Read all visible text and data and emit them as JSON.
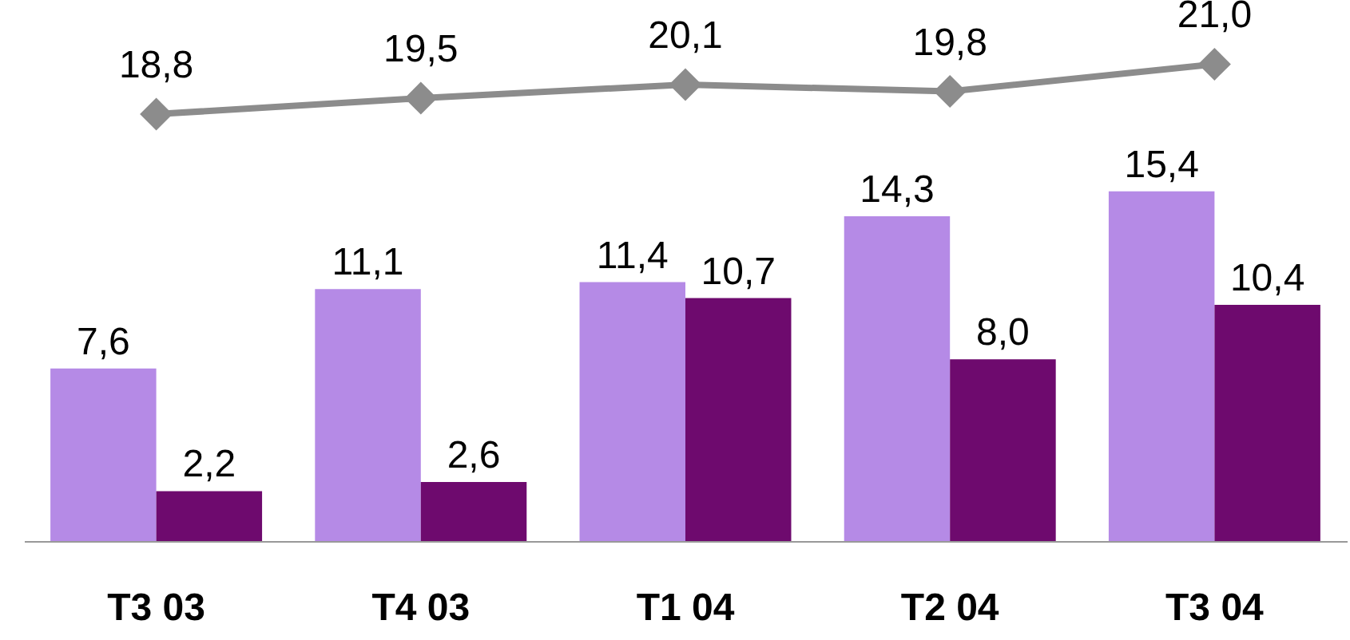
{
  "chart_data": {
    "type": "bar",
    "categories": [
      "T3 03",
      "T4 03",
      "T1 04",
      "T2 04",
      "T3 04"
    ],
    "series": [
      {
        "color": "#b58ae6",
        "values": [
          7.6,
          11.1,
          11.4,
          14.3,
          15.4
        ],
        "value_labels": [
          "7,6",
          "11,1",
          "11,4",
          "14,3",
          "15,4"
        ]
      },
      {
        "color": "#6e0a6e",
        "values": [
          2.2,
          2.6,
          10.7,
          8.0,
          10.4
        ],
        "value_labels": [
          "2,2",
          "2,6",
          "10,7",
          "8,0",
          "10,4"
        ]
      },
      {
        "type": "line",
        "color": "#8c8c8c",
        "values": [
          18.8,
          19.5,
          20.1,
          19.8,
          21.0
        ],
        "value_labels": [
          "18,8",
          "19,5",
          "20,1",
          "19,8",
          "21,0"
        ]
      }
    ],
    "tick_labels": "x",
    "marker": "diamond",
    "line_style": "solid",
    "legend": false
  }
}
